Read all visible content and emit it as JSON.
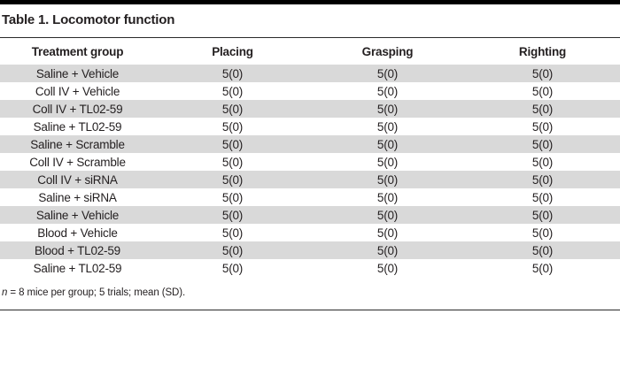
{
  "title": "Table 1. Locomotor function",
  "table": {
    "columns": [
      "Treatment group",
      "Placing",
      "Grasping",
      "Righting"
    ],
    "rows": [
      {
        "group": "Saline + Vehicle",
        "values": [
          "5(0)",
          "5(0)",
          "5(0)"
        ]
      },
      {
        "group": "Coll IV + Vehicle",
        "values": [
          "5(0)",
          "5(0)",
          "5(0)"
        ]
      },
      {
        "group": "Coll IV + TL02-59",
        "values": [
          "5(0)",
          "5(0)",
          "5(0)"
        ]
      },
      {
        "group": "Saline + TL02-59",
        "values": [
          "5(0)",
          "5(0)",
          "5(0)"
        ]
      },
      {
        "group": "Saline + Scramble",
        "values": [
          "5(0)",
          "5(0)",
          "5(0)"
        ]
      },
      {
        "group": "Coll IV + Scramble",
        "values": [
          "5(0)",
          "5(0)",
          "5(0)"
        ]
      },
      {
        "group": "Coll IV + siRNA",
        "values": [
          "5(0)",
          "5(0)",
          "5(0)"
        ]
      },
      {
        "group": "Saline + siRNA",
        "values": [
          "5(0)",
          "5(0)",
          "5(0)"
        ]
      },
      {
        "group": "Saline + Vehicle",
        "values": [
          "5(0)",
          "5(0)",
          "5(0)"
        ]
      },
      {
        "group": "Blood + Vehicle",
        "values": [
          "5(0)",
          "5(0)",
          "5(0)"
        ]
      },
      {
        "group": "Blood + TL02-59",
        "values": [
          "5(0)",
          "5(0)",
          "5(0)"
        ]
      },
      {
        "group": "Saline + TL02-59",
        "values": [
          "5(0)",
          "5(0)",
          "5(0)"
        ]
      }
    ]
  },
  "footnote": {
    "italic": "n",
    "rest": " = 8 mice per group; 5 trials; mean (SD)."
  },
  "colors": {
    "row_stripe": "#d9d9d9",
    "text": "#231f20",
    "rule": "#2a2a2a",
    "top_bar": "#000000"
  }
}
